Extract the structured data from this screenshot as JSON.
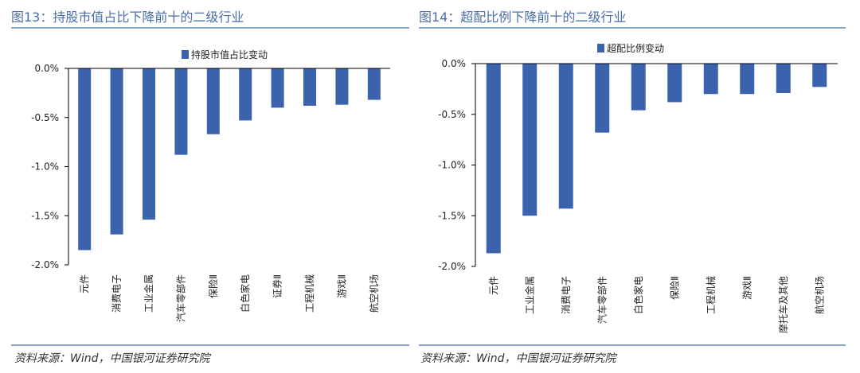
{
  "colors": {
    "bar": "#3a62ad",
    "title": "#4a6fa8",
    "axis": "#000000"
  },
  "chart_data": [
    {
      "type": "bar",
      "title": "图13：持股市值占比下降前十的二级行业",
      "legend": "持股市值占比变动",
      "source": "资料来源：Wind，中国银河证券研究院",
      "categories": [
        "元件",
        "消费电子",
        "工业金属",
        "汽车零部件",
        "保险Ⅱ",
        "白色家电",
        "证券Ⅱ",
        "工程机械",
        "游戏Ⅱ",
        "航空机场"
      ],
      "values": [
        -1.85,
        -1.69,
        -1.54,
        -0.88,
        -0.67,
        -0.53,
        -0.4,
        -0.38,
        -0.37,
        -0.32
      ],
      "ylim": [
        -2.0,
        0.0
      ],
      "yticks": [
        0.0,
        -0.5,
        -1.0,
        -1.5,
        -2.0
      ],
      "ytick_labels": [
        "0.0%",
        "-0.5%",
        "-1.0%",
        "-1.5%",
        "-2.0%"
      ],
      "xlabel": "",
      "ylabel": ""
    },
    {
      "type": "bar",
      "title": "图14：超配比例下降前十的二级行业",
      "legend": "超配比例变动",
      "source": "资料来源：Wind，中国银河证券研究院",
      "categories": [
        "元件",
        "工业金属",
        "消费电子",
        "汽车零部件",
        "白色家电",
        "保险Ⅱ",
        "工程机械",
        "游戏Ⅱ",
        "摩托车及其他",
        "航空机场"
      ],
      "values": [
        -1.87,
        -1.5,
        -1.43,
        -0.68,
        -0.46,
        -0.38,
        -0.3,
        -0.3,
        -0.29,
        -0.23
      ],
      "ylim": [
        -2.0,
        0.0
      ],
      "yticks": [
        0.0,
        -0.5,
        -1.0,
        -1.5,
        -2.0
      ],
      "ytick_labels": [
        "0.0%",
        "-0.5%",
        "-1.0%",
        "-1.5%",
        "-2.0%"
      ],
      "xlabel": "",
      "ylabel": ""
    }
  ]
}
